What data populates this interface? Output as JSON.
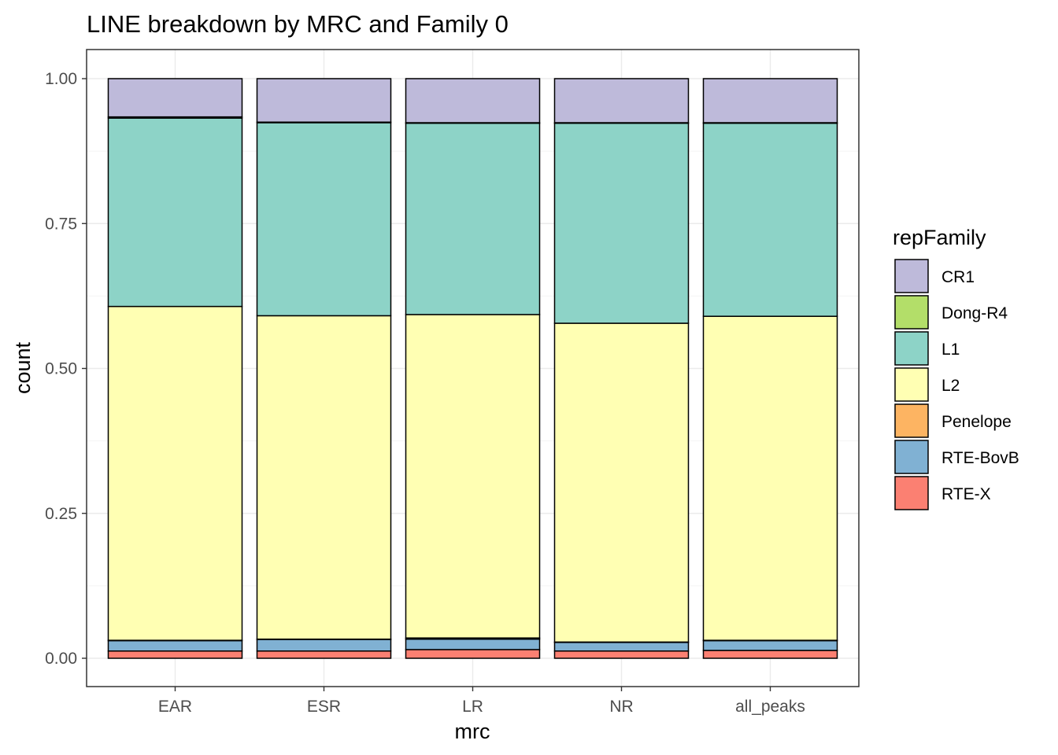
{
  "chart_data": {
    "type": "bar",
    "stacked": true,
    "title": "LINE breakdown by MRC and Family 0",
    "xlabel": "mrc",
    "ylabel": "count",
    "ylim": [
      0,
      1
    ],
    "yticks": [
      "0.00",
      "0.25",
      "0.50",
      "0.75",
      "1.00"
    ],
    "categories": [
      "EAR",
      "ESR",
      "LR",
      "NR",
      "all_peaks"
    ],
    "grid": true,
    "legend_position": "right",
    "legend_title": "repFamily",
    "series": [
      {
        "name": "CR1",
        "color": "#BEBADA",
        "values": [
          0.066,
          0.075,
          0.076,
          0.076,
          0.076
        ]
      },
      {
        "name": "Dong-R4",
        "color": "#B3DE69",
        "values": [
          0.002,
          0.001,
          0.001,
          0.001,
          0.001
        ]
      },
      {
        "name": "L1",
        "color": "#8DD3C7",
        "values": [
          0.325,
          0.333,
          0.33,
          0.345,
          0.333
        ]
      },
      {
        "name": "L2",
        "color": "#FFFFB3",
        "values": [
          0.576,
          0.558,
          0.558,
          0.55,
          0.559
        ]
      },
      {
        "name": "Penelope",
        "color": "#FDB462",
        "values": [
          0.0005,
          0.0005,
          0.002,
          0.0005,
          0.0005
        ]
      },
      {
        "name": "RTE-BovB",
        "color": "#80B1D3",
        "values": [
          0.018,
          0.02,
          0.018,
          0.015,
          0.017
        ]
      },
      {
        "name": "RTE-X",
        "color": "#FB8072",
        "values": [
          0.0125,
          0.0125,
          0.015,
          0.0125,
          0.0135
        ]
      }
    ]
  }
}
